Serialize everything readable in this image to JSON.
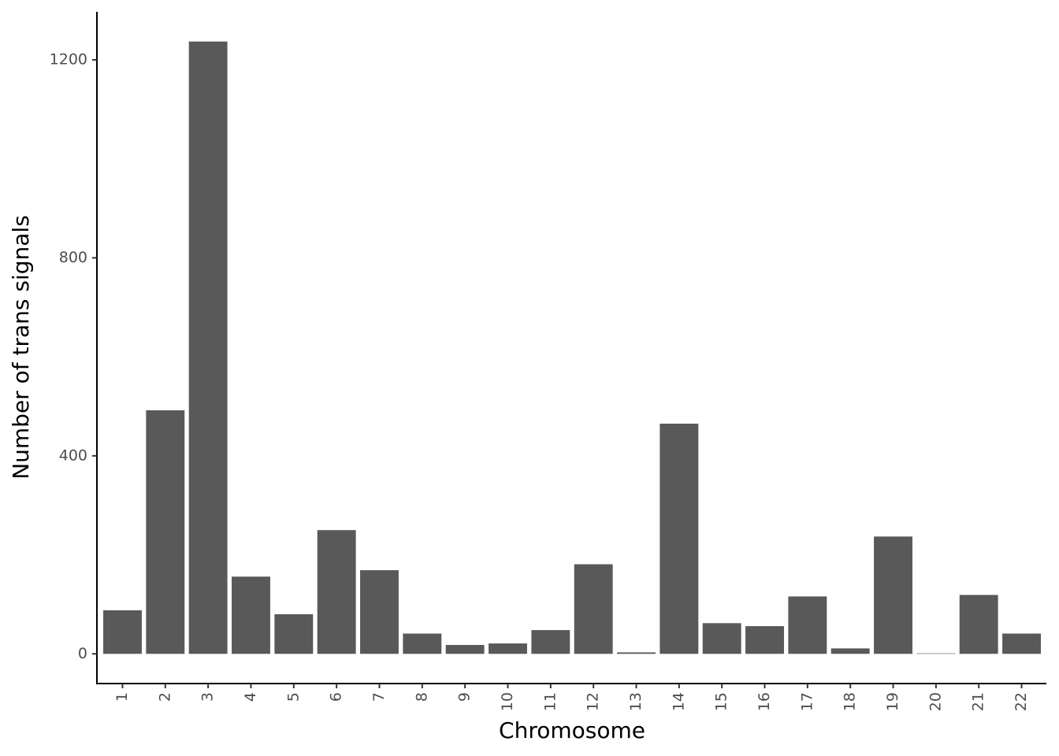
{
  "chart_data": {
    "type": "bar",
    "x_label": "Chromosome",
    "y_label": "Number of trans signals",
    "categories": [
      "1",
      "2",
      "3",
      "4",
      "5",
      "6",
      "7",
      "8",
      "9",
      "10",
      "11",
      "12",
      "13",
      "14",
      "15",
      "16",
      "17",
      "18",
      "19",
      "20",
      "21",
      "22"
    ],
    "values": [
      88,
      492,
      1237,
      156,
      80,
      250,
      169,
      41,
      18,
      21,
      48,
      181,
      3,
      465,
      62,
      56,
      116,
      11,
      237,
      1,
      119,
      41
    ],
    "color": "#595959",
    "ylim": [
      -60,
      1297
    ],
    "yticks": [
      0,
      400,
      800,
      1200
    ],
    "grid": false
  }
}
